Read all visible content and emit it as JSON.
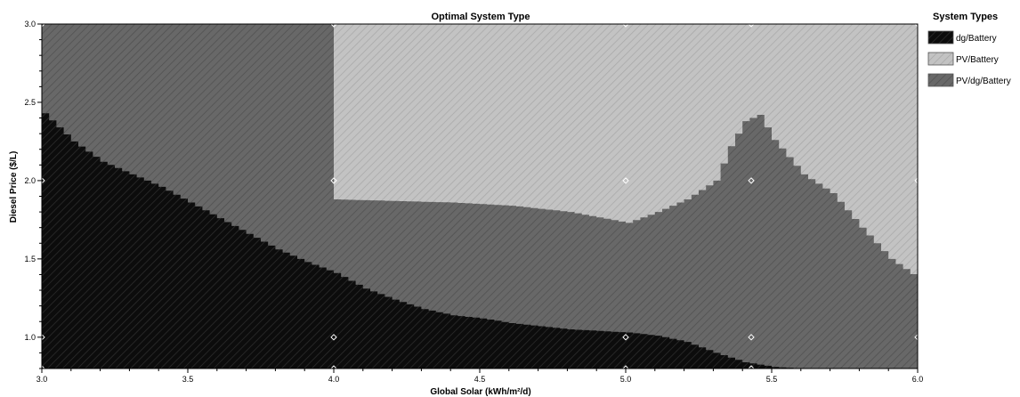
{
  "chart_data": {
    "type": "area",
    "title": "Optimal System Type",
    "xlabel": "Global Solar (kWh/m²/d)",
    "ylabel": "Diesel Price ($/L)",
    "xlim": [
      3.0,
      6.0
    ],
    "ylim": [
      0.8,
      3.0
    ],
    "x_ticks": [
      "3.0",
      "3.5",
      "4.0",
      "4.5",
      "5.0",
      "5.5",
      "6.0"
    ],
    "y_ticks": [
      "1.0",
      "1.5",
      "2.0",
      "2.5",
      "3.0"
    ],
    "legend_title": "System Types",
    "legend_position": "right",
    "colors": {
      "dg_battery": "#0c0c0c",
      "pv_battery": "#c3c3c3",
      "pv_dg_battery": "#686868"
    },
    "series": [
      {
        "name": "dg/Battery",
        "key": "dg_battery"
      },
      {
        "name": "PV/Battery",
        "key": "pv_battery"
      },
      {
        "name": "PV/dg/Battery",
        "key": "pv_dg_battery"
      }
    ],
    "boundaries": {
      "dg_battery_upper": {
        "x": [
          3.0,
          3.1,
          3.2,
          3.3,
          3.4,
          3.5,
          3.6,
          3.7,
          3.8,
          3.9,
          4.0,
          4.1,
          4.2,
          4.3,
          4.4,
          4.5,
          4.6,
          4.7,
          4.8,
          4.9,
          5.0,
          5.1,
          5.2,
          5.3,
          5.4,
          5.5,
          5.6
        ],
        "y": [
          2.43,
          2.25,
          2.12,
          2.04,
          1.96,
          1.86,
          1.76,
          1.66,
          1.56,
          1.48,
          1.41,
          1.31,
          1.24,
          1.18,
          1.14,
          1.12,
          1.09,
          1.07,
          1.05,
          1.04,
          1.03,
          1.01,
          0.97,
          0.9,
          0.84,
          0.81,
          0.8
        ]
      },
      "pv_battery_lower": {
        "x": [
          4.0,
          4.2,
          4.4,
          4.6,
          4.8,
          5.0,
          5.1,
          5.2,
          5.3,
          5.35,
          5.4,
          5.45,
          5.5,
          5.6,
          5.7,
          5.8,
          5.9,
          6.0
        ],
        "y": [
          1.88,
          1.87,
          1.86,
          1.84,
          1.8,
          1.73,
          1.8,
          1.88,
          2.0,
          2.22,
          2.38,
          2.42,
          2.26,
          2.04,
          1.92,
          1.7,
          1.5,
          1.37
        ]
      },
      "pv_battery_region_x_min": 4.0
    },
    "sample_points": [
      {
        "x": 3.0,
        "y": 0.8
      },
      {
        "x": 4.0,
        "y": 0.8
      },
      {
        "x": 5.0,
        "y": 0.8
      },
      {
        "x": 5.43,
        "y": 0.8
      },
      {
        "x": 3.0,
        "y": 1.0
      },
      {
        "x": 4.0,
        "y": 1.0
      },
      {
        "x": 5.0,
        "y": 1.0
      },
      {
        "x": 5.43,
        "y": 1.0
      },
      {
        "x": 6.0,
        "y": 1.0
      },
      {
        "x": 3.0,
        "y": 2.0
      },
      {
        "x": 4.0,
        "y": 2.0
      },
      {
        "x": 5.0,
        "y": 2.0
      },
      {
        "x": 5.43,
        "y": 2.0
      },
      {
        "x": 6.0,
        "y": 2.0
      },
      {
        "x": 3.0,
        "y": 3.0
      },
      {
        "x": 4.0,
        "y": 3.0
      },
      {
        "x": 5.0,
        "y": 3.0
      },
      {
        "x": 5.43,
        "y": 3.0
      },
      {
        "x": 6.0,
        "y": 3.0
      }
    ]
  }
}
